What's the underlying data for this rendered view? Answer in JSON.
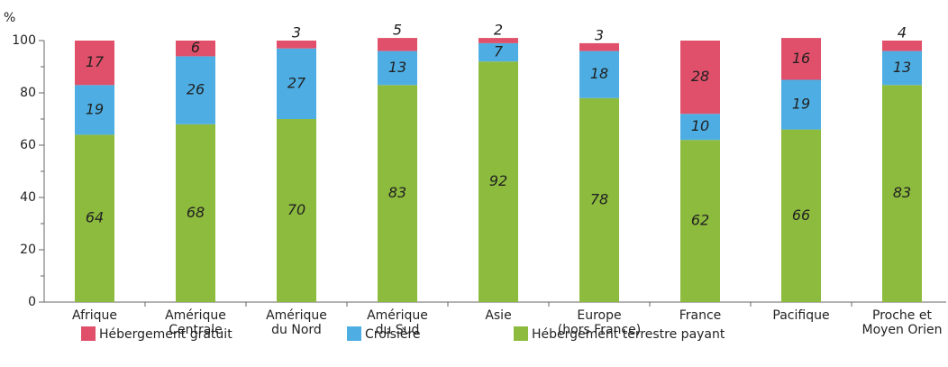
{
  "chart_data": {
    "type": "stacked_bar",
    "y_unit_label": "%",
    "categories": [
      "Afrique",
      "Amérique\nCentrale",
      "Amérique\ndu Nord",
      "Amérique\ndu Sud",
      "Asie",
      "Europe\n(hors France)",
      "France",
      "Pacifique",
      "Proche et\nMoyen Orien"
    ],
    "series": [
      {
        "name": "Hébergement terrestre payant",
        "color": "#8dbb3e",
        "values": [
          64,
          68,
          70,
          83,
          92,
          78,
          62,
          66,
          83
        ]
      },
      {
        "name": "Croisière",
        "color": "#4eaee3",
        "values": [
          19,
          26,
          27,
          13,
          7,
          18,
          10,
          19,
          13
        ]
      },
      {
        "name": "Hébergement gratuit",
        "color": "#e0506a",
        "values": [
          17,
          6,
          3,
          5,
          2,
          3,
          28,
          16,
          4
        ]
      }
    ],
    "ylim": [
      0,
      100
    ],
    "yticks": [
      0,
      20,
      40,
      60,
      80,
      100
    ]
  }
}
